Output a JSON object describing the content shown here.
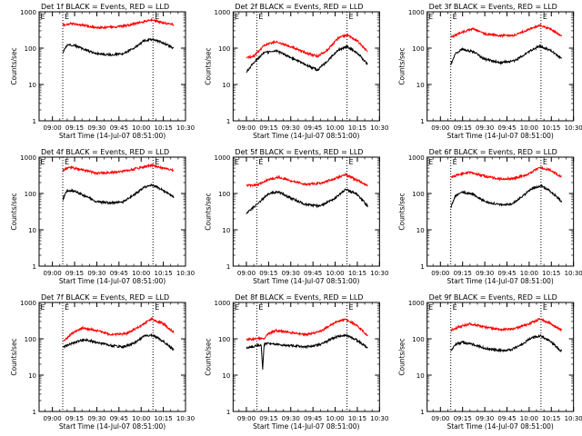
{
  "chart_data": [
    {
      "type": "line",
      "title": "Det 1f BLACK = Events, RED = LLD",
      "xlabel": "Start Time (14-Jul-07 08:51:00)",
      "ylabel": "Counts/sec",
      "x_ticks": [
        "09:00",
        "09:15",
        "09:30",
        "09:45",
        "10:00",
        "10:15",
        "10:30"
      ],
      "y_ticks": [
        "1",
        "10",
        "100",
        "1000"
      ],
      "yscale": "log",
      "ylim": [
        1,
        1000
      ],
      "marker_labels": [
        "E",
        "E"
      ],
      "series": [
        {
          "color": "#ff0000",
          "x": [
            "09:07",
            "09:12",
            "09:20",
            "09:30",
            "09:40",
            "09:50",
            "10:00",
            "10:07",
            "10:15",
            "10:22"
          ],
          "y": [
            430,
            480,
            430,
            360,
            380,
            420,
            520,
            600,
            500,
            440
          ]
        },
        {
          "color": "#000000",
          "x": [
            "09:07",
            "09:10",
            "09:15",
            "09:22",
            "09:30",
            "09:40",
            "09:48",
            "09:55",
            "10:02",
            "10:08",
            "10:15",
            "10:22"
          ],
          "y": [
            75,
            125,
            120,
            90,
            70,
            65,
            70,
            100,
            160,
            175,
            140,
            100
          ]
        }
      ]
    },
    {
      "type": "line",
      "title": "Det 2f BLACK = Events, RED = LLD",
      "xlabel": "Start Time (14-Jul-07 08:51:00)",
      "ylabel": "Counts/sec",
      "x_ticks": [
        "09:00",
        "09:15",
        "09:30",
        "09:45",
        "10:00",
        "10:15",
        "10:30"
      ],
      "y_ticks": [
        "1",
        "10",
        "100",
        "1000"
      ],
      "yscale": "log",
      "ylim": [
        1,
        1000
      ],
      "marker_labels": [
        "E",
        "E"
      ],
      "series": [
        {
          "color": "#ff0000",
          "x": [
            "09:00",
            "09:05",
            "09:12",
            "09:20",
            "09:30",
            "09:40",
            "09:48",
            "09:55",
            "10:02",
            "10:08",
            "10:15",
            "10:22"
          ],
          "y": [
            55,
            60,
            120,
            150,
            110,
            75,
            60,
            90,
            190,
            230,
            160,
            80
          ]
        },
        {
          "color": "#000000",
          "x": [
            "09:00",
            "09:05",
            "09:12",
            "09:20",
            "09:30",
            "09:40",
            "09:48",
            "09:55",
            "10:02",
            "10:08",
            "10:15",
            "10:22"
          ],
          "y": [
            22,
            40,
            75,
            85,
            55,
            35,
            25,
            45,
            90,
            110,
            75,
            35
          ]
        }
      ]
    },
    {
      "type": "line",
      "title": "Det 3f BLACK = Events, RED = LLD",
      "xlabel": "Start Time (14-Jul-07 08:51:00)",
      "ylabel": "Counts/sec",
      "x_ticks": [
        "09:00",
        "09:15",
        "09:30",
        "09:45",
        "10:00",
        "10:15",
        "10:30"
      ],
      "y_ticks": [
        "1",
        "10",
        "100",
        "1000"
      ],
      "yscale": "log",
      "ylim": [
        1,
        1000
      ],
      "marker_labels": [
        "E",
        "E"
      ],
      "series": [
        {
          "color": "#ff0000",
          "x": [
            "09:07",
            "09:15",
            "09:22",
            "09:30",
            "09:40",
            "09:50",
            "10:00",
            "10:07",
            "10:15",
            "10:22"
          ],
          "y": [
            200,
            280,
            340,
            250,
            220,
            230,
            330,
            420,
            330,
            220
          ]
        },
        {
          "color": "#000000",
          "x": [
            "09:07",
            "09:10",
            "09:15",
            "09:22",
            "09:30",
            "09:40",
            "09:50",
            "10:00",
            "10:07",
            "10:15",
            "10:22"
          ],
          "y": [
            35,
            70,
            95,
            80,
            50,
            40,
            45,
            80,
            115,
            85,
            50
          ]
        }
      ]
    },
    {
      "type": "line",
      "title": "Det 4f BLACK = Events, RED = LLD",
      "xlabel": "Start Time (14-Jul-07 08:51:00)",
      "ylabel": "Counts/sec",
      "x_ticks": [
        "09:00",
        "09:15",
        "09:30",
        "09:45",
        "10:00",
        "10:15",
        "10:30"
      ],
      "y_ticks": [
        "1",
        "10",
        "100",
        "1000"
      ],
      "yscale": "log",
      "ylim": [
        1,
        1000
      ],
      "marker_labels": [
        "E",
        "E"
      ],
      "series": [
        {
          "color": "#ff0000",
          "x": [
            "09:07",
            "09:12",
            "09:20",
            "09:30",
            "09:40",
            "09:50",
            "10:00",
            "10:07",
            "10:15",
            "10:22"
          ],
          "y": [
            430,
            520,
            450,
            360,
            380,
            420,
            520,
            600,
            500,
            430
          ]
        },
        {
          "color": "#000000",
          "x": [
            "09:07",
            "09:10",
            "09:15",
            "09:22",
            "09:30",
            "09:40",
            "09:48",
            "09:55",
            "10:02",
            "10:08",
            "10:15",
            "10:22"
          ],
          "y": [
            70,
            120,
            115,
            85,
            60,
            55,
            60,
            90,
            150,
            170,
            120,
            80
          ]
        }
      ]
    },
    {
      "type": "line",
      "title": "Det 5f BLACK = Events, RED = LLD",
      "xlabel": "Start Time (14-Jul-07 08:51:00)",
      "ylabel": "Counts/sec",
      "x_ticks": [
        "09:00",
        "09:15",
        "09:30",
        "09:45",
        "10:00",
        "10:15",
        "10:30"
      ],
      "y_ticks": [
        "1",
        "10",
        "100",
        "1000"
      ],
      "yscale": "log",
      "ylim": [
        1,
        1000
      ],
      "marker_labels": [
        "E",
        "E"
      ],
      "series": [
        {
          "color": "#ff0000",
          "x": [
            "09:00",
            "09:07",
            "09:15",
            "09:22",
            "09:30",
            "09:40",
            "09:50",
            "10:00",
            "10:07",
            "10:15",
            "10:22"
          ],
          "y": [
            165,
            170,
            240,
            280,
            220,
            180,
            190,
            260,
            330,
            230,
            170
          ]
        },
        {
          "color": "#000000",
          "x": [
            "09:00",
            "09:07",
            "09:15",
            "09:22",
            "09:30",
            "09:40",
            "09:50",
            "10:00",
            "10:07",
            "10:15",
            "10:22"
          ],
          "y": [
            28,
            50,
            100,
            110,
            75,
            50,
            45,
            75,
            130,
            95,
            45
          ]
        }
      ]
    },
    {
      "type": "line",
      "title": "Det 6f BLACK = Events, RED = LLD",
      "xlabel": "Start Time (14-Jul-07 08:51:00)",
      "ylabel": "Counts/sec",
      "x_ticks": [
        "09:00",
        "09:15",
        "09:30",
        "09:45",
        "10:00",
        "10:15",
        "10:30"
      ],
      "y_ticks": [
        "1",
        "10",
        "100",
        "1000"
      ],
      "yscale": "log",
      "ylim": [
        1,
        1000
      ],
      "marker_labels": [
        "E",
        "E"
      ],
      "series": [
        {
          "color": "#ff0000",
          "x": [
            "09:07",
            "09:12",
            "09:20",
            "09:30",
            "09:40",
            "09:50",
            "10:00",
            "10:07",
            "10:15",
            "10:22"
          ],
          "y": [
            270,
            330,
            380,
            300,
            250,
            260,
            350,
            520,
            430,
            280
          ]
        },
        {
          "color": "#000000",
          "x": [
            "09:07",
            "09:10",
            "09:15",
            "09:22",
            "09:30",
            "09:40",
            "09:48",
            "09:55",
            "10:02",
            "10:08",
            "10:15",
            "10:22"
          ],
          "y": [
            40,
            85,
            110,
            95,
            60,
            50,
            50,
            80,
            140,
            165,
            110,
            60
          ]
        }
      ]
    },
    {
      "type": "line",
      "title": "Det 7f BLACK = Events, RED = LLD",
      "xlabel": "Start Time (14-Jul-07 08:51:00)",
      "ylabel": "Counts/sec",
      "x_ticks": [
        "09:00",
        "09:15",
        "09:30",
        "09:45",
        "10:00",
        "10:15",
        "10:30"
      ],
      "y_ticks": [
        "1",
        "10",
        "100",
        "1000"
      ],
      "yscale": "log",
      "ylim": [
        1,
        1000
      ],
      "marker_labels": [
        "E",
        "E"
      ],
      "series": [
        {
          "color": "#ff0000",
          "x": [
            "09:07",
            "09:12",
            "09:20",
            "09:30",
            "09:40",
            "09:50",
            "10:00",
            "10:07",
            "10:15",
            "10:22"
          ],
          "y": [
            80,
            130,
            200,
            170,
            130,
            140,
            230,
            350,
            260,
            150
          ]
        },
        {
          "color": "#000000",
          "x": [
            "09:07",
            "09:10",
            "09:15",
            "09:22",
            "09:30",
            "09:40",
            "09:48",
            "09:55",
            "10:02",
            "10:08",
            "10:15",
            "10:22"
          ],
          "y": [
            60,
            65,
            80,
            95,
            80,
            65,
            60,
            75,
            120,
            125,
            85,
            50
          ]
        }
      ]
    },
    {
      "type": "line",
      "title": "Det 8f BLACK = Events, RED = LLD",
      "xlabel": "Start Time (14-Jul-07 08:51:00)",
      "ylabel": "Counts/sec",
      "x_ticks": [
        "09:00",
        "09:15",
        "09:30",
        "09:45",
        "10:00",
        "10:15",
        "10:30"
      ],
      "y_ticks": [
        "1",
        "10",
        "100",
        "1000"
      ],
      "yscale": "log",
      "ylim": [
        1,
        1000
      ],
      "marker_labels": [
        "E",
        "E"
      ],
      "series": [
        {
          "color": "#ff0000",
          "x": [
            "09:00",
            "09:07",
            "09:12",
            "09:15",
            "09:20",
            "09:30",
            "09:40",
            "09:50",
            "10:00",
            "10:07",
            "10:15",
            "10:22"
          ],
          "y": [
            95,
            100,
            105,
            140,
            170,
            150,
            130,
            160,
            280,
            350,
            230,
            120
          ]
        },
        {
          "color": "#000000",
          "x": [
            "09:00",
            "09:05",
            "09:10",
            "09:11",
            "09:12",
            "09:15",
            "09:20",
            "09:30",
            "09:40",
            "09:50",
            "10:00",
            "10:07",
            "10:15",
            "10:22"
          ],
          "y": [
            55,
            62,
            68,
            15,
            70,
            75,
            70,
            65,
            60,
            70,
            110,
            130,
            90,
            55
          ]
        }
      ]
    },
    {
      "type": "line",
      "title": "Det 9f BLACK = Events, RED = LLD",
      "xlabel": "Start Time (14-Jul-07 08:51:00)",
      "ylabel": "Counts/sec",
      "x_ticks": [
        "09:00",
        "09:15",
        "09:30",
        "09:45",
        "10:00",
        "10:15",
        "10:30"
      ],
      "y_ticks": [
        "1",
        "10",
        "100",
        "1000"
      ],
      "yscale": "log",
      "ylim": [
        1,
        1000
      ],
      "marker_labels": [
        "E",
        "E"
      ],
      "series": [
        {
          "color": "#ff0000",
          "x": [
            "09:07",
            "09:12",
            "09:20",
            "09:30",
            "09:40",
            "09:50",
            "10:00",
            "10:07",
            "10:15",
            "10:22"
          ],
          "y": [
            170,
            210,
            260,
            210,
            180,
            190,
            260,
            350,
            260,
            170
          ]
        },
        {
          "color": "#000000",
          "x": [
            "09:07",
            "09:10",
            "09:15",
            "09:22",
            "09:30",
            "09:40",
            "09:48",
            "09:55",
            "10:02",
            "10:08",
            "10:15",
            "10:22"
          ],
          "y": [
            45,
            70,
            80,
            70,
            55,
            48,
            50,
            70,
            110,
            120,
            80,
            45
          ]
        }
      ]
    }
  ]
}
